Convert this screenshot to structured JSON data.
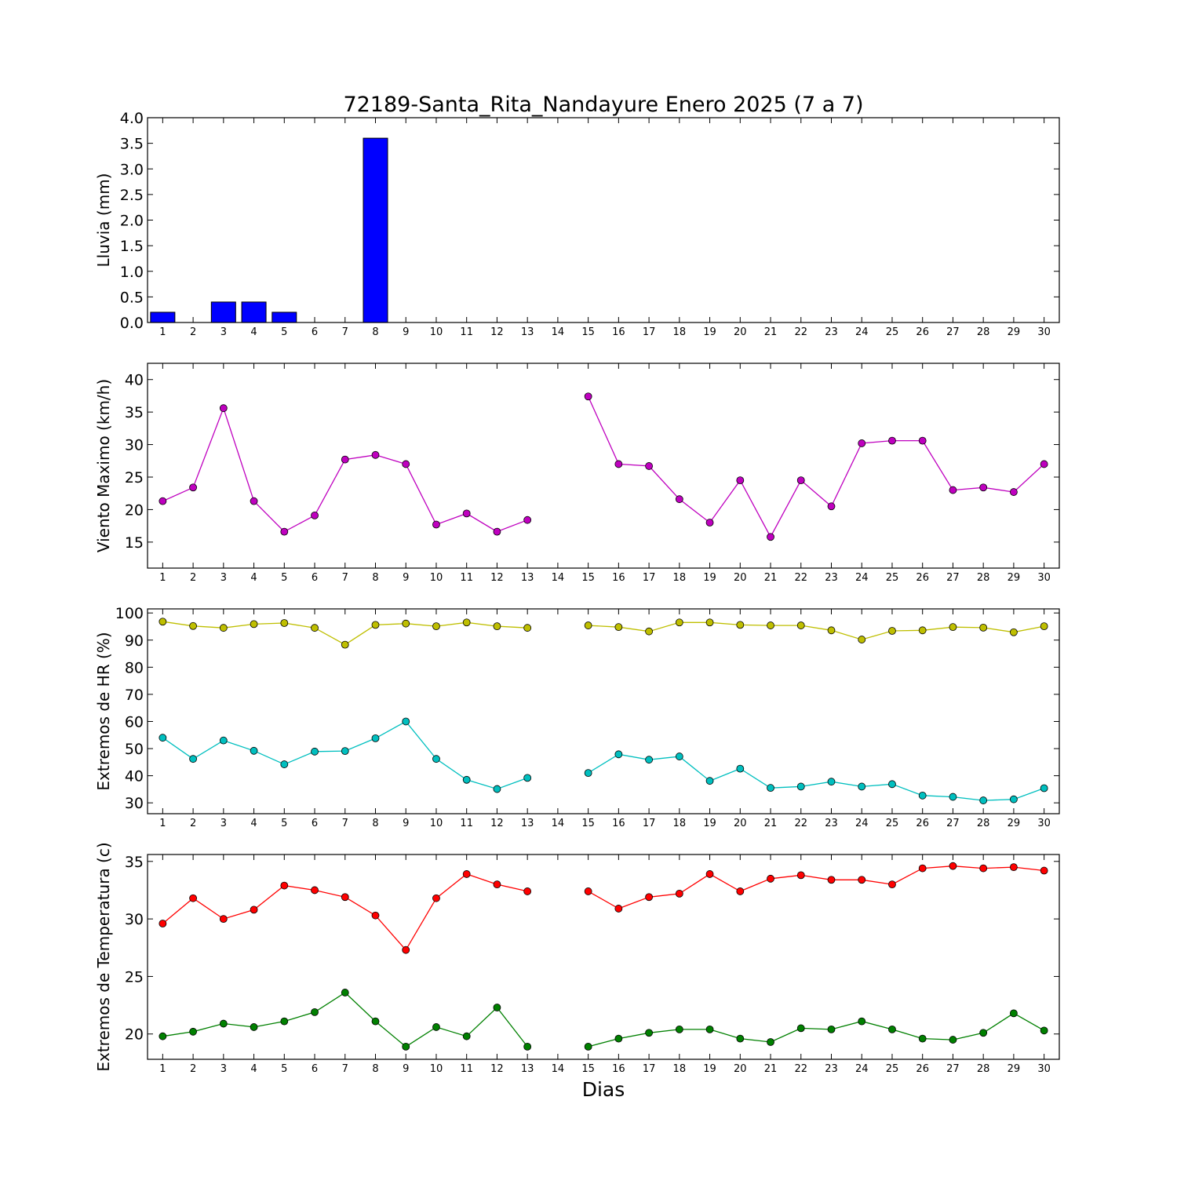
{
  "title": "72189-Santa_Rita_Nandayure Enero 2025  (7 a 7)",
  "xlabel": "Dias",
  "chart_data": [
    {
      "type": "bar",
      "ylabel": "Lluvia (mm)",
      "x": [
        1,
        2,
        3,
        4,
        5,
        6,
        7,
        8,
        9,
        10,
        11,
        12,
        13,
        14,
        15,
        16,
        17,
        18,
        19,
        20,
        21,
        22,
        23,
        24,
        25,
        26,
        27,
        28,
        29,
        30
      ],
      "xlim": [
        0.5,
        30.5
      ],
      "ylim": [
        0,
        4.0
      ],
      "yticks": [
        0.0,
        0.5,
        1.0,
        1.5,
        2.0,
        2.5,
        3.0,
        3.5,
        4.0
      ],
      "ytick_decimals": 1,
      "series": [
        {
          "color": "#0000ff",
          "values": [
            0.2,
            0.0,
            0.4,
            0.4,
            0.2,
            0.0,
            0.0,
            3.6,
            0.0,
            0.0,
            0.0,
            0.0,
            0.0,
            0.0,
            0.0,
            0.0,
            0.0,
            0.0,
            0.0,
            0.0,
            0.0,
            0.0,
            0.0,
            0.0,
            0.0,
            0.0,
            0.0,
            0.0,
            0.0,
            0.0
          ]
        }
      ]
    },
    {
      "type": "line",
      "ylabel": "Viento Maximo (km/h)",
      "x": [
        1,
        2,
        3,
        4,
        5,
        6,
        7,
        8,
        9,
        10,
        11,
        12,
        13,
        14,
        15,
        16,
        17,
        18,
        19,
        20,
        21,
        22,
        23,
        24,
        25,
        26,
        27,
        28,
        29,
        30
      ],
      "xlim": [
        0.5,
        30.5
      ],
      "ylim": [
        11,
        42.5
      ],
      "yticks": [
        15,
        20,
        25,
        30,
        35,
        40
      ],
      "ytick_decimals": 0,
      "series": [
        {
          "color": "#bf00bf",
          "values": [
            21.3,
            23.4,
            35.6,
            21.3,
            16.6,
            19.1,
            27.7,
            28.4,
            27.0,
            17.7,
            19.4,
            16.6,
            18.4,
            null,
            37.4,
            27.0,
            26.7,
            21.6,
            18.0,
            24.5,
            15.8,
            24.5,
            20.5,
            30.2,
            30.6,
            30.6,
            23.0,
            23.4,
            22.7,
            27.0
          ]
        }
      ]
    },
    {
      "type": "line",
      "ylabel": "Extremos de HR (%)",
      "x": [
        1,
        2,
        3,
        4,
        5,
        6,
        7,
        8,
        9,
        10,
        11,
        12,
        13,
        14,
        15,
        16,
        17,
        18,
        19,
        20,
        21,
        22,
        23,
        24,
        25,
        26,
        27,
        28,
        29,
        30
      ],
      "xlim": [
        0.5,
        30.5
      ],
      "ylim": [
        26,
        101.5
      ],
      "yticks": [
        30,
        40,
        50,
        60,
        70,
        80,
        90,
        100
      ],
      "ytick_decimals": 0,
      "series": [
        {
          "color": "#bfbf00",
          "values": [
            96.8,
            95.2,
            94.5,
            95.9,
            96.3,
            94.5,
            88.3,
            95.6,
            96.1,
            95.1,
            96.5,
            95.1,
            94.5,
            null,
            95.4,
            94.8,
            93.2,
            96.5,
            96.5,
            95.6,
            95.4,
            95.4,
            93.6,
            90.2,
            93.4,
            93.6,
            94.8,
            94.6,
            92.9,
            95.1
          ]
        },
        {
          "color": "#00bfbf",
          "values": [
            54.0,
            46.2,
            53.0,
            49.2,
            44.2,
            48.9,
            49.1,
            53.8,
            60.0,
            46.2,
            38.5,
            35.1,
            39.2,
            null,
            41.0,
            47.9,
            45.9,
            47.1,
            38.1,
            42.6,
            35.5,
            36.0,
            37.8,
            36.0,
            36.9,
            32.7,
            32.2,
            30.9,
            31.3,
            35.4
          ]
        }
      ]
    },
    {
      "type": "line",
      "ylabel": "Extremos de Temperatura (c)",
      "x": [
        1,
        2,
        3,
        4,
        5,
        6,
        7,
        8,
        9,
        10,
        11,
        12,
        13,
        14,
        15,
        16,
        17,
        18,
        19,
        20,
        21,
        22,
        23,
        24,
        25,
        26,
        27,
        28,
        29,
        30
      ],
      "xlim": [
        0.5,
        30.5
      ],
      "ylim": [
        17.8,
        35.6
      ],
      "yticks": [
        20,
        25,
        30,
        35
      ],
      "ytick_decimals": 0,
      "series": [
        {
          "color": "#ff0000",
          "values": [
            29.6,
            31.8,
            30.0,
            30.8,
            32.9,
            32.5,
            31.9,
            30.3,
            27.3,
            31.8,
            33.9,
            33.0,
            32.4,
            null,
            32.4,
            30.9,
            31.9,
            32.2,
            33.9,
            32.4,
            33.5,
            33.8,
            33.4,
            33.4,
            33.0,
            34.4,
            34.6,
            34.4,
            34.5,
            34.2
          ]
        },
        {
          "color": "#008000",
          "values": [
            19.8,
            20.2,
            20.9,
            20.6,
            21.1,
            21.9,
            23.6,
            21.1,
            18.9,
            20.6,
            19.8,
            22.3,
            18.9,
            null,
            18.9,
            19.6,
            20.1,
            20.4,
            20.4,
            19.6,
            19.3,
            20.5,
            20.4,
            21.1,
            20.4,
            19.6,
            19.5,
            20.1,
            21.8,
            20.3
          ]
        }
      ]
    }
  ]
}
